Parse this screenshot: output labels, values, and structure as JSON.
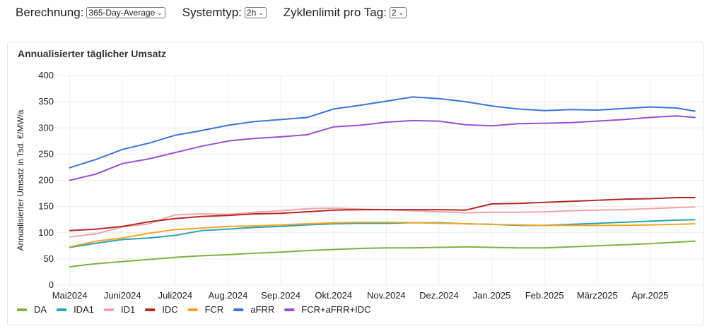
{
  "controls": {
    "berechnung": {
      "label": "Berechnung:",
      "value": "365-Day-Average"
    },
    "systemtyp": {
      "label": "Systemtyp:",
      "value": "2h"
    },
    "zyklenlimit": {
      "label": "Zyklenlimit pro Tag:",
      "value": "2"
    }
  },
  "chart_title": "Annualisierter täglicher Umsatz",
  "chart_data": {
    "type": "line",
    "title": "Annualisierter täglicher Umsatz",
    "ylabel": "Annualisierter Umsatz in Tsd. €/MW/a",
    "xlabel": "",
    "ylim": [
      0,
      400
    ],
    "yticks": [
      0,
      50,
      100,
      150,
      200,
      250,
      300,
      350,
      400
    ],
    "x_range": [
      -0.25,
      12.0
    ],
    "x": [
      0,
      0.5,
      1,
      1.5,
      2,
      2.5,
      3,
      3.5,
      4,
      4.5,
      5,
      5.5,
      6,
      6.5,
      7,
      7.5,
      8,
      8.5,
      9,
      9.5,
      10,
      10.5,
      11,
      11.5,
      11.85
    ],
    "month_ticks": [
      {
        "label": "Mai2024",
        "x": 0
      },
      {
        "label": "Juni2024",
        "x": 1
      },
      {
        "label": "Juli2024",
        "x": 2
      },
      {
        "label": "Aug.2024",
        "x": 3
      },
      {
        "label": "Sep.2024",
        "x": 4
      },
      {
        "label": "Okt.2024",
        "x": 5
      },
      {
        "label": "Nov.2024",
        "x": 6
      },
      {
        "label": "Dez.2024",
        "x": 7
      },
      {
        "label": "Jan.2025",
        "x": 8
      },
      {
        "label": "Feb.2025",
        "x": 9
      },
      {
        "label": "März2025",
        "x": 10
      },
      {
        "label": "Apr.2025",
        "x": 11
      }
    ],
    "grid": true,
    "legend_position": "bottom-left",
    "series": [
      {
        "name": "DA",
        "color": "#7cb342",
        "values": [
          35,
          41,
          45,
          49,
          53,
          56,
          58,
          61,
          63,
          66,
          68,
          70,
          71,
          71,
          72,
          73,
          72,
          71,
          71,
          73,
          75,
          77,
          79,
          82,
          84
        ]
      },
      {
        "name": "IDA1",
        "color": "#2ba3b4",
        "values": [
          72,
          80,
          87,
          90,
          95,
          104,
          107,
          110,
          112,
          115,
          117,
          118,
          118,
          119,
          119,
          117,
          116,
          114,
          114,
          116,
          118,
          120,
          122,
          124,
          125
        ]
      },
      {
        "name": "ID1",
        "color": "#f0a3aa",
        "values": [
          92,
          98,
          111,
          117,
          134,
          136,
          135,
          139,
          142,
          146,
          147,
          145,
          144,
          142,
          140,
          138,
          139,
          139,
          140,
          142,
          143,
          144,
          146,
          148,
          149
        ]
      },
      {
        "name": "IDC",
        "color": "#b22a25",
        "values": [
          104,
          107,
          112,
          121,
          127,
          131,
          133,
          136,
          137,
          140,
          143,
          144,
          144,
          144,
          144,
          143,
          155,
          156,
          158,
          160,
          162,
          164,
          165,
          167,
          167
        ]
      },
      {
        "name": "FCR",
        "color": "#f5a623",
        "values": [
          73,
          84,
          90,
          99,
          106,
          109,
          112,
          113,
          115,
          117,
          119,
          120,
          120,
          119,
          118,
          117,
          116,
          115,
          114,
          114,
          114,
          114,
          115,
          116,
          117
        ]
      },
      {
        "name": "aFRR",
        "color": "#3a75d8",
        "values": [
          224,
          240,
          259,
          271,
          286,
          295,
          305,
          312,
          316,
          320,
          336,
          343,
          351,
          359,
          356,
          350,
          342,
          336,
          333,
          335,
          334,
          337,
          340,
          338,
          332
        ]
      },
      {
        "name": "FCR+aFRR+IDC",
        "color": "#9b4fd0",
        "values": [
          200,
          212,
          232,
          241,
          253,
          265,
          275,
          280,
          283,
          287,
          302,
          305,
          311,
          314,
          313,
          306,
          304,
          308,
          309,
          310,
          313,
          316,
          320,
          323,
          320
        ]
      }
    ]
  }
}
